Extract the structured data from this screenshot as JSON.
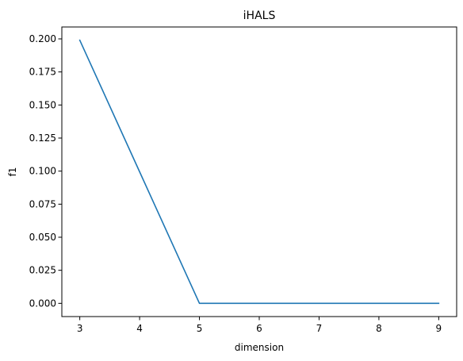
{
  "chart_data": {
    "type": "line",
    "title": "iHALS",
    "xlabel": "dimension",
    "ylabel": "f1",
    "x": [
      3,
      4,
      5,
      6,
      7,
      8,
      9
    ],
    "series": [
      {
        "values": [
          0.199,
          0.0995,
          0.0,
          0.0,
          0.0,
          0.0,
          0.0
        ],
        "color": "#1f77b4"
      }
    ],
    "xlim": [
      2.7,
      9.3
    ],
    "ylim": [
      -0.01,
      0.209
    ],
    "xticks": [
      3,
      4,
      5,
      6,
      7,
      8,
      9
    ],
    "xtick_labels": [
      "3",
      "4",
      "5",
      "6",
      "7",
      "8",
      "9"
    ],
    "yticks": [
      0.0,
      0.025,
      0.05,
      0.075,
      0.1,
      0.125,
      0.15,
      0.175,
      0.2
    ],
    "ytick_labels": [
      "0.000",
      "0.025",
      "0.050",
      "0.075",
      "0.100",
      "0.125",
      "0.150",
      "0.175",
      "0.200"
    ],
    "grid": false,
    "legend": false
  }
}
